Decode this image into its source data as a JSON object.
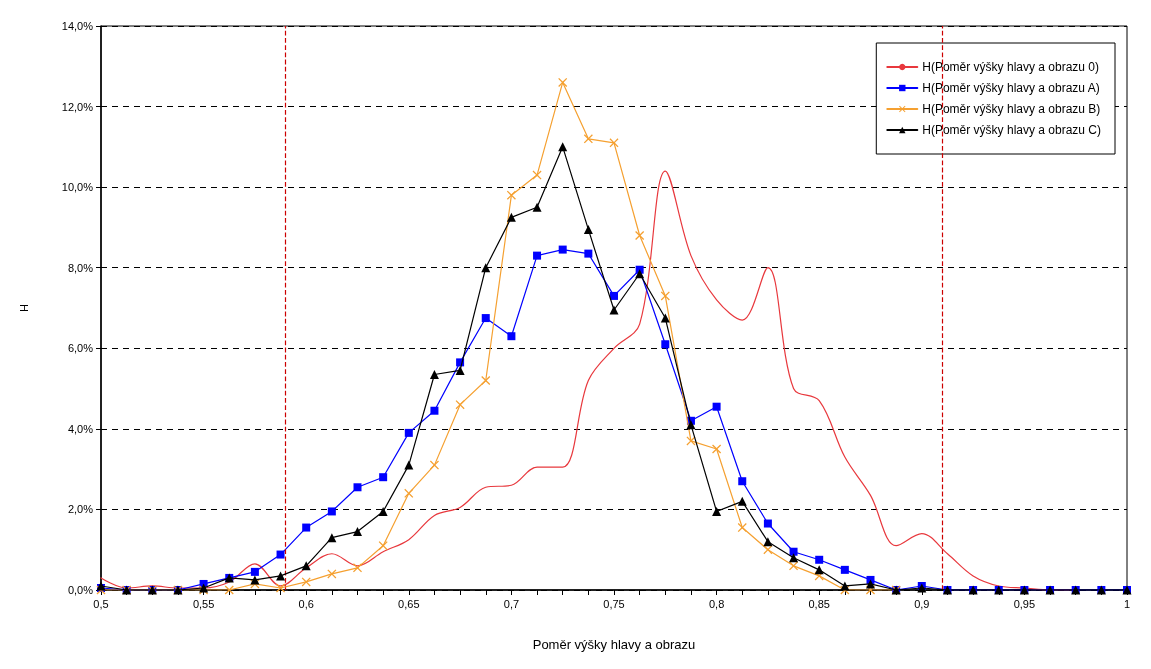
{
  "chart_data": {
    "type": "line",
    "xlabel": "Poměr výšky hlavy a obrazu",
    "ylabel": "H",
    "x": [
      0.5,
      0.5125,
      0.525,
      0.5375,
      0.55,
      0.5625,
      0.575,
      0.5875,
      0.6,
      0.6125,
      0.625,
      0.6375,
      0.65,
      0.6625,
      0.675,
      0.6875,
      0.7,
      0.7125,
      0.725,
      0.7375,
      0.75,
      0.7625,
      0.775,
      0.7875,
      0.8,
      0.8125,
      0.825,
      0.8375,
      0.85,
      0.8625,
      0.875,
      0.8875,
      0.9,
      0.9125,
      0.925,
      0.9375,
      0.95,
      0.9625,
      0.975,
      0.9875,
      1.0
    ],
    "series": [
      {
        "name": "H(Poměr výšky hlavy a obrazu 0)",
        "color": "#e8383d",
        "marker": "none",
        "values": [
          0.3,
          0.05,
          0.1,
          0.05,
          0.05,
          0.2,
          0.65,
          0.1,
          0.55,
          0.9,
          0.6,
          0.95,
          1.25,
          1.85,
          2.05,
          2.55,
          2.6,
          3.05,
          3.05,
          5.2,
          6.0,
          6.6,
          10.4,
          8.3,
          7.2,
          6.7,
          8.0,
          5.0,
          4.7,
          3.3,
          2.35,
          1.1,
          1.4,
          0.9,
          0.35,
          0.1,
          0.05,
          0,
          0,
          null,
          null
        ]
      },
      {
        "name": "H(Poměr výšky hlavy a obrazu A)",
        "color": "#0000ff",
        "marker": "square",
        "values": [
          0.05,
          0,
          0,
          0,
          0.15,
          0.3,
          0.45,
          0.88,
          1.55,
          1.95,
          2.55,
          2.8,
          3.9,
          4.45,
          5.65,
          6.75,
          6.3,
          8.3,
          8.45,
          8.35,
          7.3,
          7.95,
          6.1,
          4.2,
          4.55,
          2.7,
          1.65,
          0.95,
          0.75,
          0.5,
          0.25,
          0,
          0.1,
          0,
          0,
          0,
          0,
          0,
          0,
          0,
          0
        ]
      },
      {
        "name": "H(Poměr výšky hlavy a obrazu B)",
        "color": "#f5a030",
        "marker": "cross",
        "values": [
          0,
          0,
          0,
          0,
          0,
          0,
          0.15,
          0.05,
          0.2,
          0.4,
          0.55,
          1.1,
          2.4,
          3.1,
          4.6,
          5.2,
          9.8,
          10.3,
          12.6,
          11.2,
          11.1,
          8.8,
          7.3,
          3.7,
          3.5,
          1.55,
          1.0,
          0.6,
          0.35,
          0,
          0,
          0,
          null,
          null,
          null,
          null,
          null,
          null,
          null,
          null,
          null
        ]
      },
      {
        "name": "H(Poměr výšky hlavy a obrazu C)",
        "color": "#000000",
        "marker": "triangle",
        "values": [
          0.1,
          0,
          0,
          0,
          0.05,
          0.3,
          0.25,
          0.35,
          0.6,
          1.3,
          1.45,
          1.95,
          3.1,
          5.35,
          5.45,
          8.0,
          9.25,
          9.5,
          11.0,
          8.95,
          6.95,
          7.85,
          6.75,
          4.1,
          1.95,
          2.2,
          1.2,
          0.8,
          0.5,
          0.1,
          0.15,
          0,
          0.05,
          0,
          0,
          0,
          0,
          0,
          0,
          0,
          0
        ]
      }
    ],
    "xlim": [
      0.5,
      1.0
    ],
    "xticks": [
      {
        "value": 0.5,
        "label": "0,5"
      },
      {
        "value": 0.5125,
        "label": null
      },
      {
        "value": 0.525,
        "label": null
      },
      {
        "value": 0.5375,
        "label": null
      },
      {
        "value": 0.55,
        "label": "0,55"
      },
      {
        "value": 0.5625,
        "label": null
      },
      {
        "value": 0.575,
        "label": null
      },
      {
        "value": 0.5875,
        "label": null
      },
      {
        "value": 0.6,
        "label": "0,6"
      },
      {
        "value": 0.6125,
        "label": null
      },
      {
        "value": 0.625,
        "label": null
      },
      {
        "value": 0.6375,
        "label": null
      },
      {
        "value": 0.65,
        "label": "0,65"
      },
      {
        "value": 0.6625,
        "label": null
      },
      {
        "value": 0.675,
        "label": null
      },
      {
        "value": 0.6875,
        "label": null
      },
      {
        "value": 0.7,
        "label": "0,7"
      },
      {
        "value": 0.7125,
        "label": null
      },
      {
        "value": 0.725,
        "label": null
      },
      {
        "value": 0.7375,
        "label": null
      },
      {
        "value": 0.75,
        "label": "0,75"
      },
      {
        "value": 0.7625,
        "label": null
      },
      {
        "value": 0.775,
        "label": null
      },
      {
        "value": 0.7875,
        "label": null
      },
      {
        "value": 0.8,
        "label": "0,8"
      },
      {
        "value": 0.8125,
        "label": null
      },
      {
        "value": 0.825,
        "label": null
      },
      {
        "value": 0.8375,
        "label": null
      },
      {
        "value": 0.85,
        "label": "0,85"
      },
      {
        "value": 0.8625,
        "label": null
      },
      {
        "value": 0.875,
        "label": null
      },
      {
        "value": 0.8875,
        "label": null
      },
      {
        "value": 0.9,
        "label": "0,9"
      },
      {
        "value": 0.9125,
        "label": null
      },
      {
        "value": 0.925,
        "label": null
      },
      {
        "value": 0.9375,
        "label": null
      },
      {
        "value": 0.95,
        "label": "0,95"
      },
      {
        "value": 0.9625,
        "label": null
      },
      {
        "value": 0.975,
        "label": null
      },
      {
        "value": 0.9875,
        "label": null
      },
      {
        "value": 1.0,
        "label": "1"
      }
    ],
    "ylim": [
      0,
      14
    ],
    "yticks": [
      {
        "value": 0,
        "label": "0,0%"
      },
      {
        "value": 2,
        "label": "2,0%"
      },
      {
        "value": 4,
        "label": "4,0%"
      },
      {
        "value": 6,
        "label": "6,0%"
      },
      {
        "value": 8,
        "label": "8,0%"
      },
      {
        "value": 10,
        "label": "10,0%"
      },
      {
        "value": 12,
        "label": "12,0%"
      },
      {
        "value": 14,
        "label": "14,0%"
      }
    ],
    "grid": "y",
    "line_style": "solid",
    "legend": "top right",
    "ref_lines": [
      {
        "axis": "x",
        "value": 0.59,
        "color": "#cc0000",
        "line_style": "dashed"
      },
      {
        "axis": "x",
        "value": 0.91,
        "color": "#cc0000",
        "line_style": "dashed"
      }
    ]
  }
}
